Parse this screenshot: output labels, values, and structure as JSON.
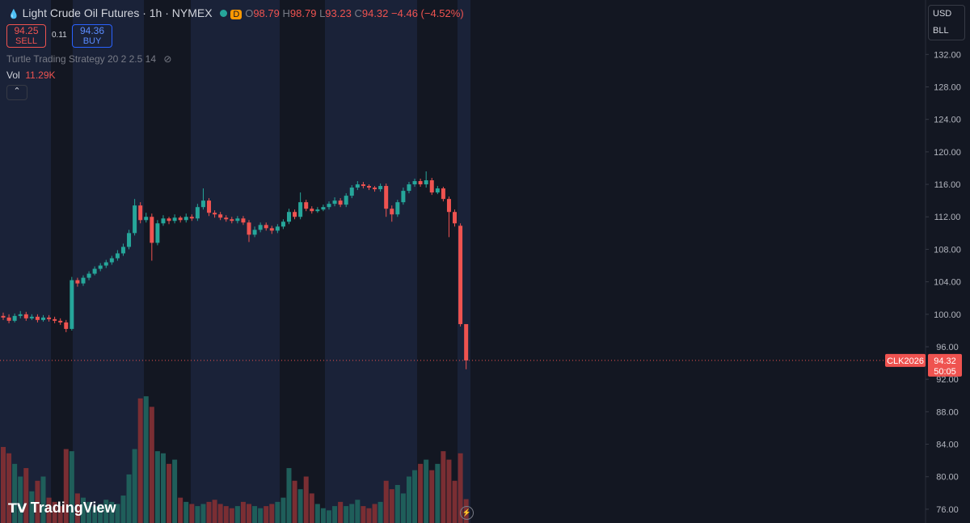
{
  "header": {
    "title": "Light Crude Oil Futures · 1h · NYMEX",
    "badge": "D",
    "o": "O",
    "h": "H",
    "l": "L",
    "c": "C",
    "change": "−4.46 (−4.52%)",
    "sell_price": "94.25",
    "sell": "SELL",
    "spread": "0.11",
    "buy_price": "94.36",
    "buy": "BUY",
    "indicator": "Turtle Trading Strategy 20 2 2.5 14",
    "vol": "Vol",
    "vol_value": "11.29K",
    "currency": "USD",
    "unit": "BLL",
    "logo": "TradingView"
  },
  "chart_data": {
    "type": "candlestick",
    "symbol_tag": "CLK2026",
    "countdown": "50:05",
    "up_color": "#26a69a",
    "down_color": "#ef5350",
    "open": [
      99.8,
      99.6,
      99.2,
      99.8,
      100.0,
      99.5,
      99.7,
      99.3,
      99.6,
      99.4,
      99.2,
      99.0,
      98.2,
      104.2,
      103.8,
      104.5,
      105.0,
      105.6,
      106.0,
      106.4,
      106.9,
      107.5,
      108.3,
      110.0,
      113.4,
      111.6,
      112.0,
      108.8,
      111.2,
      111.8,
      111.5,
      111.9,
      111.6,
      112.0,
      111.8,
      113.2,
      114.0,
      112.5,
      112.3,
      111.9,
      111.7,
      111.5,
      111.8,
      111.3,
      109.8,
      110.4,
      111.0,
      110.6,
      110.3,
      110.8,
      111.4,
      112.6,
      112.0,
      113.8,
      113.0,
      112.7,
      112.9,
      113.2,
      113.6,
      114.0,
      113.5,
      114.6,
      115.6,
      116.0,
      115.8,
      115.6,
      115.4,
      115.8,
      113.0,
      112.3,
      113.8,
      115.2,
      116.0,
      116.4,
      116.0,
      116.5,
      115.0,
      115.5,
      114.2,
      112.6,
      110.9,
      98.79
    ],
    "high": [
      100.2,
      100.0,
      100.1,
      100.4,
      100.3,
      100.0,
      100.0,
      99.9,
      99.9,
      99.7,
      99.5,
      99.3,
      104.6,
      104.5,
      104.8,
      105.3,
      105.9,
      106.3,
      106.7,
      107.2,
      107.9,
      108.7,
      110.4,
      114.2,
      113.8,
      112.5,
      112.4,
      111.6,
      112.2,
      112.0,
      112.3,
      112.1,
      112.4,
      112.3,
      113.6,
      115.5,
      114.3,
      112.8,
      112.6,
      112.2,
      112.0,
      112.1,
      112.1,
      111.6,
      110.8,
      111.3,
      111.3,
      110.9,
      111.1,
      111.7,
      113.0,
      112.9,
      115.0,
      114.1,
      113.3,
      113.2,
      113.5,
      113.9,
      114.4,
      114.3,
      114.9,
      115.9,
      116.4,
      116.3,
      116.0,
      115.8,
      116.1,
      116.1,
      113.4,
      114.1,
      115.6,
      116.3,
      116.7,
      116.7,
      117.6,
      116.8,
      115.8,
      115.7,
      114.5,
      112.9,
      111.2,
      98.79
    ],
    "low": [
      99.3,
      98.9,
      99.0,
      99.5,
      99.2,
      99.3,
      99.0,
      99.1,
      99.1,
      98.9,
      98.7,
      97.8,
      98.0,
      103.4,
      103.5,
      104.2,
      104.8,
      105.3,
      105.7,
      106.1,
      106.6,
      107.2,
      108.0,
      109.7,
      111.2,
      111.3,
      106.6,
      108.5,
      110.9,
      111.1,
      111.2,
      111.3,
      111.3,
      111.5,
      111.5,
      112.9,
      112.1,
      111.9,
      111.6,
      111.4,
      111.2,
      111.2,
      111.0,
      108.9,
      109.5,
      110.1,
      110.3,
      109.9,
      110.0,
      110.5,
      111.1,
      111.7,
      111.7,
      112.7,
      112.4,
      112.5,
      112.7,
      112.9,
      113.3,
      113.2,
      113.2,
      114.3,
      115.3,
      115.5,
      115.3,
      115.1,
      115.1,
      112.0,
      111.4,
      112.0,
      113.5,
      114.9,
      115.7,
      115.7,
      115.6,
      114.7,
      114.8,
      113.9,
      109.5,
      110.8,
      98.5,
      93.23
    ],
    "close": [
      99.6,
      99.2,
      99.8,
      100.0,
      99.5,
      99.7,
      99.3,
      99.6,
      99.4,
      99.2,
      99.0,
      98.2,
      104.2,
      103.8,
      104.5,
      105.0,
      105.6,
      106.0,
      106.4,
      106.9,
      107.5,
      108.3,
      110.0,
      113.4,
      111.6,
      112.0,
      108.8,
      111.2,
      111.8,
      111.5,
      111.9,
      111.6,
      112.0,
      111.8,
      113.2,
      114.0,
      112.5,
      112.3,
      111.9,
      111.7,
      111.5,
      111.8,
      111.3,
      109.8,
      110.4,
      111.0,
      110.6,
      110.3,
      110.8,
      111.4,
      112.6,
      112.0,
      113.8,
      113.0,
      112.7,
      112.9,
      113.2,
      113.6,
      114.0,
      113.5,
      114.6,
      115.6,
      116.0,
      115.8,
      115.6,
      115.4,
      115.8,
      113.0,
      112.3,
      113.8,
      115.2,
      116.0,
      116.4,
      116.0,
      116.5,
      115.0,
      115.5,
      114.2,
      112.6,
      111.2,
      98.79,
      94.32
    ],
    "ylim": [
      74.3,
      138.7
    ],
    "yticks": [
      {
        "value": 76,
        "label": "76.00"
      },
      {
        "value": 80,
        "label": "80.00"
      },
      {
        "value": 84,
        "label": "84.00"
      },
      {
        "value": 88,
        "label": "88.00"
      },
      {
        "value": 92,
        "label": "92.00"
      },
      {
        "value": 96,
        "label": "96.00"
      },
      {
        "value": 100,
        "label": "100.00"
      },
      {
        "value": 104,
        "label": "104.00"
      },
      {
        "value": 108,
        "label": "108.00"
      },
      {
        "value": 112,
        "label": "112.00"
      },
      {
        "value": 116,
        "label": "116.00"
      },
      {
        "value": 120,
        "label": "120.00"
      },
      {
        "value": 124,
        "label": "124.00"
      },
      {
        "value": 128,
        "label": "128.00"
      },
      {
        "value": 132,
        "label": "132.00"
      }
    ],
    "volume": {
      "ylim": [
        0,
        62
      ],
      "up_color": "#1f5e5a",
      "down_color": "#7a2e33",
      "values": [
        36,
        33,
        28,
        22,
        26,
        15,
        20,
        22,
        12,
        10,
        8,
        35,
        34,
        14,
        12,
        10,
        8,
        9,
        11,
        10,
        9,
        13,
        23,
        35,
        59,
        60,
        55,
        34,
        33,
        28,
        30,
        12,
        10,
        9,
        8,
        9,
        10,
        11,
        9,
        8,
        7,
        8,
        10,
        9,
        8,
        7,
        8,
        9,
        10,
        12,
        26,
        20,
        16,
        22,
        14,
        9,
        7,
        6,
        8,
        10,
        8,
        9,
        11,
        8,
        7,
        9,
        10,
        20,
        16,
        18,
        14,
        22,
        25,
        28,
        30,
        25,
        28,
        34,
        30,
        20,
        33,
        11.29
      ]
    }
  }
}
